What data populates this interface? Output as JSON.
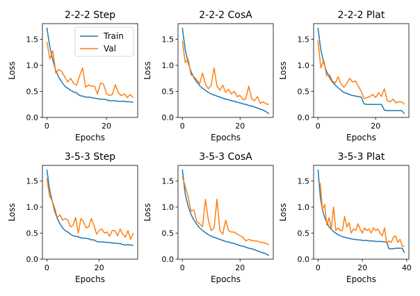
{
  "figure": {
    "series_colors": {
      "Train": "#1f77b4",
      "Val": "#ff7f0e"
    },
    "legend": {
      "placement": "top-right",
      "panel_index": 0,
      "entries": [
        "Train",
        "Val"
      ]
    }
  },
  "chart_data": [
    {
      "type": "line",
      "title": "2-2-2 Step",
      "xlabel": "Epochs",
      "ylabel": "Loss",
      "xlim": [
        -1.5,
        30.5
      ],
      "ylim": [
        0,
        1.8
      ],
      "xticks": [
        0,
        20
      ],
      "yticks": [
        0.0,
        0.5,
        1.0,
        1.5
      ],
      "grid": false,
      "series": [
        {
          "name": "Train",
          "x": [
            0,
            1,
            2,
            3,
            4,
            5,
            6,
            7,
            8,
            9,
            10,
            11,
            12,
            13,
            14,
            15,
            16,
            17,
            18,
            19,
            20,
            21,
            22,
            23,
            24,
            25,
            26,
            27,
            28,
            29
          ],
          "values": [
            1.72,
            1.35,
            1.1,
            0.9,
            0.77,
            0.68,
            0.6,
            0.56,
            0.52,
            0.49,
            0.47,
            0.42,
            0.41,
            0.39,
            0.39,
            0.38,
            0.37,
            0.36,
            0.35,
            0.35,
            0.34,
            0.32,
            0.32,
            0.32,
            0.31,
            0.31,
            0.31,
            0.3,
            0.3,
            0.29
          ]
        },
        {
          "name": "Val",
          "x": [
            0,
            1,
            2,
            3,
            4,
            5,
            6,
            7,
            8,
            9,
            10,
            11,
            12,
            13,
            14,
            15,
            16,
            17,
            18,
            19,
            20,
            21,
            22,
            23,
            24,
            25,
            26,
            27,
            28,
            29
          ],
          "values": [
            1.45,
            1.12,
            1.28,
            0.85,
            0.92,
            0.88,
            0.78,
            0.68,
            0.75,
            0.65,
            0.62,
            0.8,
            0.95,
            0.58,
            0.62,
            0.6,
            0.6,
            0.45,
            0.66,
            0.64,
            0.46,
            0.42,
            0.44,
            0.63,
            0.47,
            0.42,
            0.45,
            0.38,
            0.44,
            0.38
          ]
        }
      ]
    },
    {
      "type": "line",
      "title": "2-2-2 CosA",
      "xlabel": "Epochs",
      "ylabel": "Loss",
      "xlim": [
        -1.5,
        31.5
      ],
      "ylim": [
        0,
        1.8
      ],
      "xticks": [
        0,
        20
      ],
      "yticks": [
        0.0,
        0.5,
        1.0,
        1.5
      ],
      "grid": false,
      "series": [
        {
          "name": "Train",
          "x": [
            0,
            1,
            2,
            3,
            4,
            5,
            6,
            7,
            8,
            9,
            10,
            11,
            12,
            13,
            14,
            15,
            16,
            17,
            18,
            19,
            20,
            21,
            22,
            23,
            24,
            25,
            26,
            27,
            28,
            29,
            30
          ],
          "values": [
            1.72,
            1.3,
            1.05,
            0.88,
            0.76,
            0.68,
            0.61,
            0.56,
            0.52,
            0.48,
            0.45,
            0.43,
            0.41,
            0.39,
            0.37,
            0.35,
            0.34,
            0.32,
            0.31,
            0.29,
            0.28,
            0.26,
            0.25,
            0.23,
            0.22,
            0.2,
            0.18,
            0.16,
            0.14,
            0.11,
            0.07
          ]
        },
        {
          "name": "Val",
          "x": [
            0,
            1,
            2,
            3,
            4,
            5,
            6,
            7,
            8,
            9,
            10,
            11,
            12,
            13,
            14,
            15,
            16,
            17,
            18,
            19,
            20,
            21,
            22,
            23,
            24,
            25,
            26,
            27,
            28,
            29,
            30
          ],
          "values": [
            1.47,
            1.05,
            1.12,
            0.82,
            0.78,
            0.72,
            0.65,
            0.85,
            0.64,
            0.55,
            0.62,
            0.95,
            0.6,
            0.52,
            0.62,
            0.48,
            0.54,
            0.45,
            0.5,
            0.4,
            0.42,
            0.34,
            0.36,
            0.6,
            0.36,
            0.32,
            0.4,
            0.27,
            0.3,
            0.26,
            0.25
          ]
        }
      ]
    },
    {
      "type": "line",
      "title": "2-2-2 Plat",
      "xlabel": "Epochs",
      "ylabel": "Loss",
      "xlim": [
        -1.5,
        31.5
      ],
      "ylim": [
        0,
        1.8
      ],
      "xticks": [
        0,
        20
      ],
      "yticks": [
        0.0,
        0.5,
        1.0,
        1.5
      ],
      "grid": false,
      "series": [
        {
          "name": "Train",
          "x": [
            0,
            1,
            2,
            3,
            4,
            5,
            6,
            7,
            8,
            9,
            10,
            11,
            12,
            13,
            14,
            15,
            16,
            17,
            18,
            19,
            20,
            21,
            22,
            23,
            24,
            25,
            26,
            27,
            28,
            29,
            30
          ],
          "values": [
            1.72,
            1.3,
            1.05,
            0.88,
            0.77,
            0.68,
            0.62,
            0.57,
            0.52,
            0.48,
            0.46,
            0.44,
            0.42,
            0.41,
            0.4,
            0.39,
            0.26,
            0.25,
            0.25,
            0.25,
            0.25,
            0.25,
            0.25,
            0.14,
            0.13,
            0.13,
            0.13,
            0.13,
            0.13,
            0.13,
            0.07
          ]
        },
        {
          "name": "Val",
          "x": [
            0,
            1,
            2,
            3,
            4,
            5,
            6,
            7,
            8,
            9,
            10,
            11,
            12,
            13,
            14,
            15,
            16,
            17,
            18,
            19,
            20,
            21,
            22,
            23,
            24,
            25,
            26,
            27,
            28,
            29,
            30
          ],
          "values": [
            1.48,
            0.95,
            1.1,
            0.8,
            0.82,
            0.7,
            0.66,
            0.78,
            0.64,
            0.58,
            0.65,
            0.75,
            0.68,
            0.7,
            0.6,
            0.5,
            0.36,
            0.38,
            0.4,
            0.44,
            0.38,
            0.48,
            0.4,
            0.55,
            0.32,
            0.3,
            0.35,
            0.28,
            0.3,
            0.3,
            0.25
          ]
        }
      ]
    },
    {
      "type": "line",
      "title": "3-5-3 Step",
      "xlabel": "Epochs",
      "ylabel": "Loss",
      "xlim": [
        -1.7,
        34.7
      ],
      "ylim": [
        0,
        1.8
      ],
      "xticks": [
        0,
        20
      ],
      "yticks": [
        0.0,
        0.5,
        1.0,
        1.5
      ],
      "grid": false,
      "series": [
        {
          "name": "Train",
          "x": [
            0,
            1,
            2,
            3,
            4,
            5,
            6,
            7,
            8,
            9,
            10,
            11,
            12,
            13,
            14,
            15,
            16,
            17,
            18,
            19,
            20,
            21,
            22,
            23,
            24,
            25,
            26,
            27,
            28,
            29,
            30,
            31,
            32,
            33
          ],
          "values": [
            1.72,
            1.35,
            1.12,
            0.92,
            0.78,
            0.68,
            0.6,
            0.55,
            0.52,
            0.48,
            0.45,
            0.44,
            0.43,
            0.41,
            0.4,
            0.4,
            0.39,
            0.37,
            0.37,
            0.34,
            0.33,
            0.33,
            0.33,
            0.32,
            0.32,
            0.31,
            0.31,
            0.3,
            0.3,
            0.28,
            0.27,
            0.28,
            0.27,
            0.27
          ]
        },
        {
          "name": "Val",
          "x": [
            0,
            1,
            2,
            3,
            4,
            5,
            6,
            7,
            8,
            9,
            10,
            11,
            12,
            13,
            14,
            15,
            16,
            17,
            18,
            19,
            20,
            21,
            22,
            23,
            24,
            25,
            26,
            27,
            28,
            29,
            30,
            31,
            32,
            33
          ],
          "values": [
            1.55,
            1.22,
            1.12,
            0.98,
            0.8,
            0.85,
            0.75,
            0.78,
            0.75,
            0.62,
            0.65,
            0.8,
            0.5,
            0.78,
            0.72,
            0.6,
            0.62,
            0.78,
            0.65,
            0.48,
            0.55,
            0.58,
            0.5,
            0.52,
            0.44,
            0.55,
            0.55,
            0.45,
            0.58,
            0.48,
            0.42,
            0.55,
            0.38,
            0.5
          ]
        }
      ]
    },
    {
      "type": "line",
      "title": "3-5-3 CosA",
      "xlabel": "Epochs",
      "ylabel": "Loss",
      "xlim": [
        -1.5,
        31.5
      ],
      "ylim": [
        0,
        1.8
      ],
      "xticks": [
        0,
        20
      ],
      "yticks": [
        0.0,
        0.5,
        1.0,
        1.5
      ],
      "grid": false,
      "series": [
        {
          "name": "Train",
          "x": [
            0,
            1,
            2,
            3,
            4,
            5,
            6,
            7,
            8,
            9,
            10,
            11,
            12,
            13,
            14,
            15,
            16,
            17,
            18,
            19,
            20,
            21,
            22,
            23,
            24,
            25,
            26,
            27,
            28,
            29,
            30
          ],
          "values": [
            1.72,
            1.25,
            1.02,
            0.86,
            0.75,
            0.67,
            0.6,
            0.55,
            0.51,
            0.47,
            0.44,
            0.42,
            0.4,
            0.38,
            0.36,
            0.34,
            0.33,
            0.31,
            0.3,
            0.28,
            0.26,
            0.25,
            0.23,
            0.21,
            0.2,
            0.18,
            0.16,
            0.14,
            0.12,
            0.1,
            0.07
          ]
        },
        {
          "name": "Val",
          "x": [
            0,
            1,
            2,
            3,
            4,
            5,
            6,
            7,
            8,
            9,
            10,
            11,
            12,
            13,
            14,
            15,
            16,
            17,
            18,
            19,
            20,
            21,
            22,
            23,
            24,
            25,
            26,
            27,
            28,
            29,
            30
          ],
          "values": [
            1.58,
            1.4,
            1.2,
            0.92,
            0.95,
            0.72,
            0.68,
            0.62,
            1.15,
            0.75,
            0.55,
            0.6,
            1.15,
            0.55,
            0.48,
            0.75,
            0.55,
            0.52,
            0.52,
            0.48,
            0.45,
            0.42,
            0.35,
            0.38,
            0.36,
            0.35,
            0.35,
            0.32,
            0.32,
            0.3,
            0.28
          ]
        }
      ]
    },
    {
      "type": "line",
      "title": "3-5-3 Plat",
      "xlabel": "Epochs",
      "ylabel": "Loss",
      "xlim": [
        -2,
        41
      ],
      "ylim": [
        0,
        1.8
      ],
      "xticks": [
        0,
        20,
        40
      ],
      "yticks": [
        0.0,
        0.5,
        1.0,
        1.5
      ],
      "grid": false,
      "series": [
        {
          "name": "Train",
          "x": [
            0,
            1,
            2,
            3,
            4,
            5,
            6,
            7,
            8,
            9,
            10,
            11,
            12,
            13,
            14,
            15,
            16,
            17,
            18,
            19,
            20,
            21,
            22,
            23,
            24,
            25,
            26,
            27,
            28,
            29,
            30,
            31,
            32,
            33,
            34,
            35,
            36,
            37,
            38,
            39
          ],
          "values": [
            1.72,
            1.2,
            0.95,
            0.8,
            0.7,
            0.62,
            0.57,
            0.53,
            0.5,
            0.47,
            0.45,
            0.43,
            0.42,
            0.41,
            0.4,
            0.39,
            0.38,
            0.38,
            0.37,
            0.37,
            0.36,
            0.36,
            0.36,
            0.35,
            0.35,
            0.35,
            0.34,
            0.34,
            0.34,
            0.34,
            0.33,
            0.33,
            0.2,
            0.2,
            0.2,
            0.21,
            0.21,
            0.21,
            0.21,
            0.12
          ]
        },
        {
          "name": "Val",
          "x": [
            0,
            1,
            2,
            3,
            4,
            5,
            6,
            7,
            8,
            9,
            10,
            11,
            12,
            13,
            14,
            15,
            16,
            17,
            18,
            19,
            20,
            21,
            22,
            23,
            24,
            25,
            26,
            27,
            28,
            29,
            30,
            31,
            32,
            33,
            34,
            35,
            36,
            37,
            38,
            39
          ],
          "values": [
            1.5,
            1.45,
            0.95,
            1.05,
            0.65,
            0.8,
            0.58,
            1.0,
            0.55,
            0.6,
            0.55,
            0.55,
            0.82,
            0.62,
            0.7,
            0.5,
            0.58,
            0.55,
            0.68,
            0.58,
            0.5,
            0.6,
            0.55,
            0.58,
            0.5,
            0.6,
            0.55,
            0.58,
            0.5,
            0.45,
            0.6,
            0.3,
            0.35,
            0.32,
            0.42,
            0.45,
            0.32,
            0.38,
            0.25,
            0.25
          ]
        }
      ]
    }
  ]
}
